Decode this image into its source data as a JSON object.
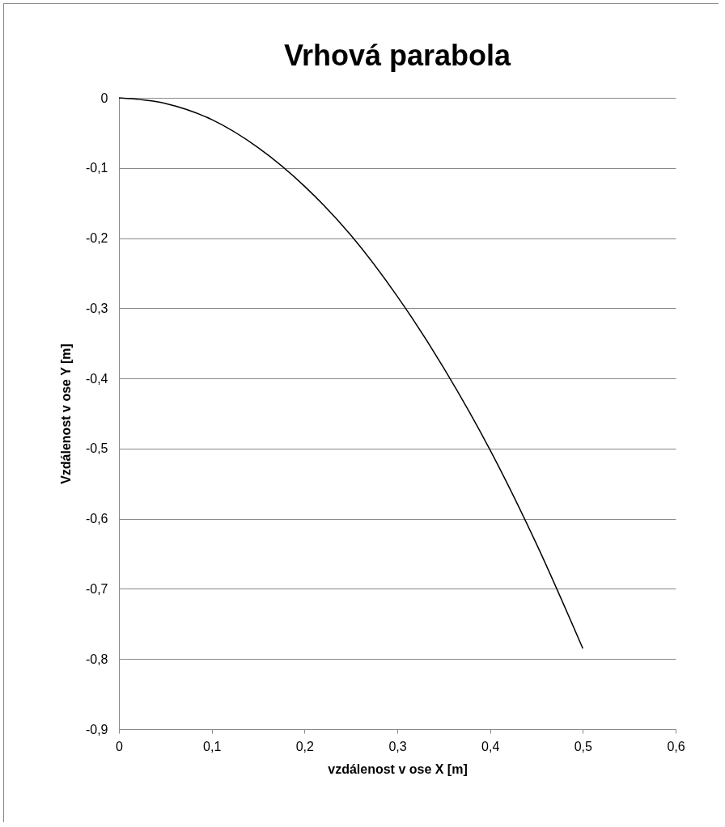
{
  "chart_data": {
    "type": "line",
    "title": "Vrhová parabola",
    "xlabel": "vzdálenost v ose X [m]",
    "ylabel": "Vzdálenost v ose Y [m]",
    "x": [
      0,
      0.05,
      0.1,
      0.15,
      0.2,
      0.25,
      0.3,
      0.35,
      0.4,
      0.45,
      0.5
    ],
    "series": [
      {
        "color": "#000000",
        "values": [
          0,
          -0.008,
          -0.031,
          -0.071,
          -0.126,
          -0.196,
          -0.283,
          -0.385,
          -0.502,
          -0.636,
          -0.785
        ]
      }
    ],
    "xlim": [
      0,
      0.6
    ],
    "ylim": [
      -0.9,
      0
    ],
    "xticks": [
      0,
      {
        "value": 0.1,
        "label": "0,1"
      },
      {
        "value": 0.2,
        "label": "0,2"
      },
      {
        "value": 0.3,
        "label": "0,3"
      },
      {
        "value": 0.4,
        "label": "0,4"
      },
      {
        "value": 0.5,
        "label": "0,5"
      },
      {
        "value": 0.6,
        "label": "0,6"
      }
    ],
    "yticks": [
      0,
      {
        "value": -0.1,
        "label": "-0,1"
      },
      {
        "value": -0.2,
        "label": "-0,2"
      },
      {
        "value": -0.3,
        "label": "-0,3"
      },
      {
        "value": -0.4,
        "label": "-0,4"
      },
      {
        "value": -0.5,
        "label": "-0,5"
      },
      {
        "value": -0.6,
        "label": "-0,6"
      },
      {
        "value": -0.7,
        "label": "-0,7"
      },
      {
        "value": -0.8,
        "label": "-0,8"
      },
      {
        "value": -0.9,
        "label": "-0,9"
      }
    ],
    "grid": "y",
    "marker": "none",
    "line_style": "solid"
  }
}
